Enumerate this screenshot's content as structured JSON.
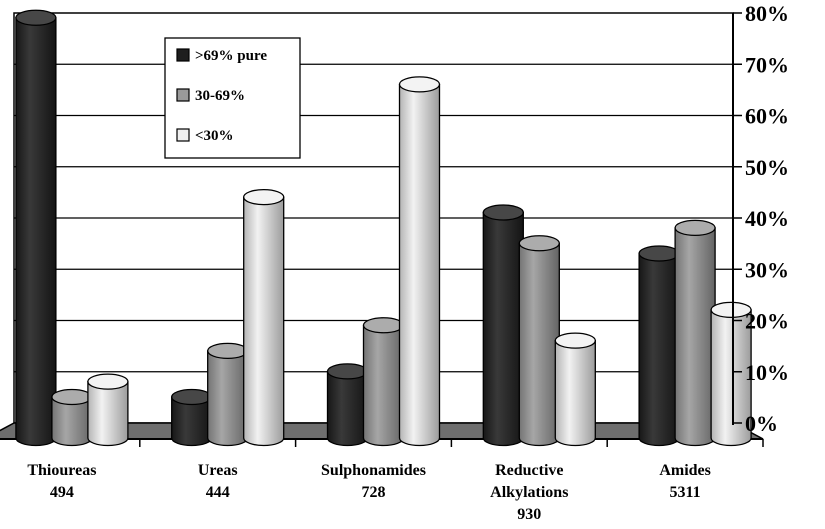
{
  "chart_data": {
    "type": "bar",
    "title": "",
    "xlabel": "",
    "ylabel": "",
    "ylim": [
      0,
      80
    ],
    "yticks": [
      "0%",
      "10%",
      "20%",
      "30%",
      "40%",
      "50%",
      "60%",
      "70%",
      "80%"
    ],
    "grid": true,
    "legend_position": "top-left",
    "categories": [
      [
        "Thioureas",
        "494"
      ],
      [
        "Ureas",
        "444"
      ],
      [
        "Sulphonamides",
        "728"
      ],
      [
        "Reductive",
        "Alkylations",
        "930"
      ],
      [
        "Amides",
        "5311"
      ]
    ],
    "series": [
      {
        "name": ">69% pure",
        "color": "#1e1e1e",
        "values": [
          82,
          8,
          13,
          44,
          36
        ]
      },
      {
        "name": "30-69%",
        "color": "#9a9a9a",
        "values": [
          8,
          17,
          22,
          38,
          41
        ]
      },
      {
        "name": "<30%",
        "color": "#f0f0f0",
        "values": [
          11,
          47,
          69,
          19,
          25
        ]
      }
    ]
  }
}
